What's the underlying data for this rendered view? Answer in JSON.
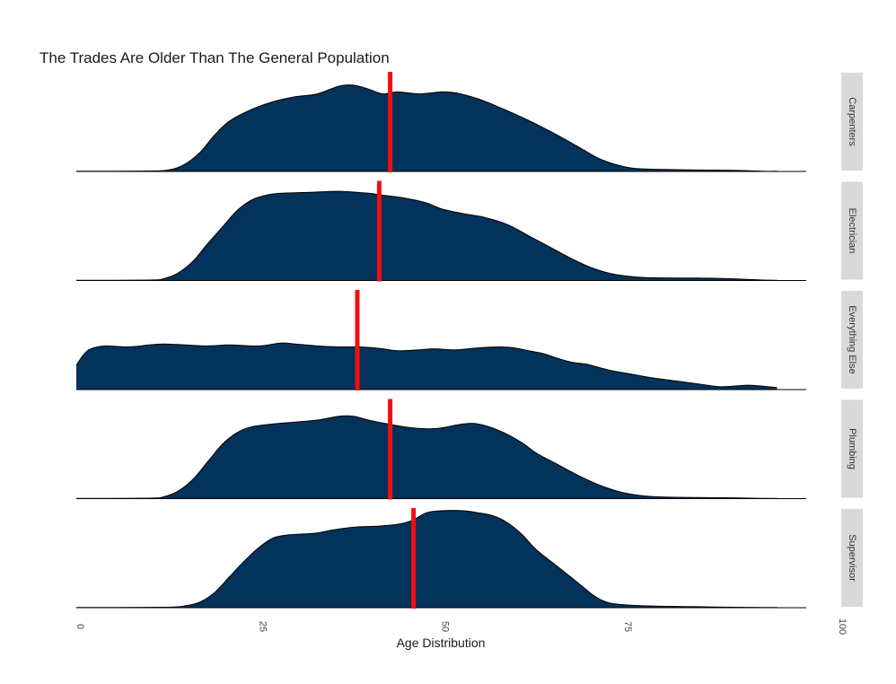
{
  "chart_data": {
    "type": "area",
    "title": "The Trades Are Older Than The General Population",
    "xlabel": "Age Distribution",
    "ylabel": "",
    "xlim": [
      0,
      100
    ],
    "xticks": [
      0,
      25,
      50,
      75,
      100
    ],
    "colors": {
      "fill": "#03325a",
      "median_line": "#ee1111",
      "strip_bg": "#d9d9d9"
    },
    "legend": "none",
    "grid": false,
    "panels": [
      {
        "name": "Carpenters",
        "median": 43.0,
        "density": [
          [
            0,
            0.002
          ],
          [
            10,
            0.005
          ],
          [
            13,
            0.02
          ],
          [
            15,
            0.08
          ],
          [
            17,
            0.2
          ],
          [
            19,
            0.38
          ],
          [
            21,
            0.52
          ],
          [
            24,
            0.64
          ],
          [
            27,
            0.72
          ],
          [
            30,
            0.77
          ],
          [
            33,
            0.8
          ],
          [
            36,
            0.88
          ],
          [
            38,
            0.89
          ],
          [
            40,
            0.85
          ],
          [
            42,
            0.8
          ],
          [
            44,
            0.82
          ],
          [
            47,
            0.8
          ],
          [
            50,
            0.82
          ],
          [
            52,
            0.81
          ],
          [
            55,
            0.75
          ],
          [
            58,
            0.66
          ],
          [
            61,
            0.56
          ],
          [
            64,
            0.45
          ],
          [
            67,
            0.33
          ],
          [
            70,
            0.2
          ],
          [
            72,
            0.12
          ],
          [
            75,
            0.05
          ],
          [
            78,
            0.025
          ],
          [
            85,
            0.015
          ],
          [
            90,
            0.012
          ],
          [
            94,
            0.003
          ],
          [
            96,
            0.002
          ]
        ]
      },
      {
        "name": "Electrician",
        "median": 41.5,
        "density": [
          [
            0,
            0.002
          ],
          [
            10,
            0.005
          ],
          [
            12,
            0.02
          ],
          [
            14,
            0.08
          ],
          [
            16,
            0.2
          ],
          [
            18,
            0.38
          ],
          [
            20,
            0.55
          ],
          [
            22,
            0.72
          ],
          [
            24,
            0.83
          ],
          [
            26,
            0.88
          ],
          [
            28,
            0.9
          ],
          [
            32,
            0.91
          ],
          [
            36,
            0.92
          ],
          [
            40,
            0.9
          ],
          [
            42,
            0.88
          ],
          [
            45,
            0.85
          ],
          [
            48,
            0.8
          ],
          [
            50,
            0.74
          ],
          [
            53,
            0.69
          ],
          [
            56,
            0.65
          ],
          [
            59,
            0.58
          ],
          [
            62,
            0.46
          ],
          [
            65,
            0.34
          ],
          [
            68,
            0.22
          ],
          [
            71,
            0.12
          ],
          [
            74,
            0.06
          ],
          [
            78,
            0.03
          ],
          [
            85,
            0.025
          ],
          [
            90,
            0.018
          ],
          [
            94,
            0.005
          ],
          [
            96,
            0.002
          ]
        ]
      },
      {
        "name": "Everything Else",
        "median": 38.5,
        "density": [
          [
            0,
            0.25
          ],
          [
            1,
            0.36
          ],
          [
            2,
            0.42
          ],
          [
            4,
            0.45
          ],
          [
            7,
            0.44
          ],
          [
            10,
            0.46
          ],
          [
            12,
            0.47
          ],
          [
            15,
            0.46
          ],
          [
            18,
            0.45
          ],
          [
            21,
            0.46
          ],
          [
            25,
            0.45
          ],
          [
            28,
            0.48
          ],
          [
            30,
            0.47
          ],
          [
            33,
            0.45
          ],
          [
            36,
            0.44
          ],
          [
            39,
            0.44
          ],
          [
            42,
            0.42
          ],
          [
            44,
            0.4
          ],
          [
            47,
            0.41
          ],
          [
            49,
            0.42
          ],
          [
            52,
            0.41
          ],
          [
            55,
            0.43
          ],
          [
            58,
            0.44
          ],
          [
            60,
            0.43
          ],
          [
            62,
            0.4
          ],
          [
            64,
            0.37
          ],
          [
            66,
            0.32
          ],
          [
            68,
            0.28
          ],
          [
            70,
            0.26
          ],
          [
            73,
            0.2
          ],
          [
            76,
            0.16
          ],
          [
            79,
            0.12
          ],
          [
            82,
            0.09
          ],
          [
            85,
            0.06
          ],
          [
            88,
            0.03
          ],
          [
            90,
            0.035
          ],
          [
            92,
            0.045
          ],
          [
            94,
            0.035
          ],
          [
            96,
            0.02
          ]
        ]
      },
      {
        "name": "Plumbing",
        "median": 43.0,
        "density": [
          [
            0,
            0.002
          ],
          [
            10,
            0.005
          ],
          [
            12,
            0.02
          ],
          [
            14,
            0.08
          ],
          [
            16,
            0.2
          ],
          [
            18,
            0.38
          ],
          [
            20,
            0.56
          ],
          [
            22,
            0.68
          ],
          [
            24,
            0.74
          ],
          [
            27,
            0.77
          ],
          [
            30,
            0.79
          ],
          [
            33,
            0.81
          ],
          [
            36,
            0.85
          ],
          [
            38,
            0.85
          ],
          [
            40,
            0.81
          ],
          [
            42,
            0.78
          ],
          [
            45,
            0.74
          ],
          [
            48,
            0.72
          ],
          [
            50,
            0.73
          ],
          [
            53,
            0.77
          ],
          [
            55,
            0.77
          ],
          [
            58,
            0.7
          ],
          [
            61,
            0.58
          ],
          [
            63,
            0.47
          ],
          [
            66,
            0.35
          ],
          [
            69,
            0.23
          ],
          [
            72,
            0.13
          ],
          [
            75,
            0.06
          ],
          [
            79,
            0.02
          ],
          [
            85,
            0.012
          ],
          [
            90,
            0.008
          ],
          [
            94,
            0.003
          ],
          [
            96,
            0.002
          ]
        ]
      },
      {
        "name": "Supervisor",
        "median": 46.2,
        "density": [
          [
            0,
            0.002
          ],
          [
            12,
            0.005
          ],
          [
            15,
            0.02
          ],
          [
            17,
            0.06
          ],
          [
            19,
            0.16
          ],
          [
            21,
            0.32
          ],
          [
            23,
            0.48
          ],
          [
            25,
            0.62
          ],
          [
            27,
            0.72
          ],
          [
            29,
            0.75
          ],
          [
            31,
            0.76
          ],
          [
            33,
            0.77
          ],
          [
            35,
            0.8
          ],
          [
            38,
            0.83
          ],
          [
            41,
            0.84
          ],
          [
            44,
            0.86
          ],
          [
            46,
            0.9
          ],
          [
            48,
            0.98
          ],
          [
            50,
            1.0
          ],
          [
            53,
            1.0
          ],
          [
            55,
            0.98
          ],
          [
            57,
            0.95
          ],
          [
            59,
            0.88
          ],
          [
            61,
            0.76
          ],
          [
            63,
            0.6
          ],
          [
            66,
            0.42
          ],
          [
            69,
            0.24
          ],
          [
            71,
            0.12
          ],
          [
            73,
            0.05
          ],
          [
            76,
            0.025
          ],
          [
            80,
            0.015
          ],
          [
            85,
            0.01
          ],
          [
            90,
            0.005
          ],
          [
            94,
            0.002
          ],
          [
            96,
            0.002
          ]
        ]
      }
    ]
  }
}
